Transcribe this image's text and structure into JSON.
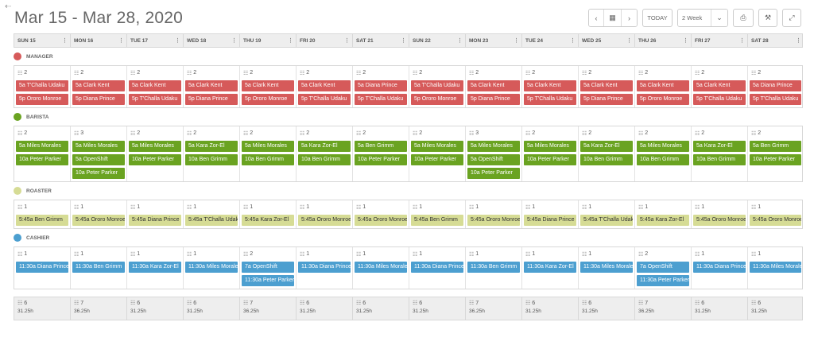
{
  "title": "Mar 15 - Mar 28, 2020",
  "back_glyph": "⇠",
  "toolbar": {
    "prev": "‹",
    "calendar": "▦",
    "next": "›",
    "today": "TODAY",
    "range": "2 Week",
    "range_caret": "⌄",
    "print": "⎙",
    "settings": "⚒",
    "expand": "⤢"
  },
  "days": [
    "SUN 15",
    "MON 16",
    "TUE 17",
    "WED 18",
    "THU 19",
    "FRI 20",
    "SAT 21",
    "SUN 22",
    "MON 23",
    "TUE 24",
    "WED 25",
    "THU 26",
    "FRI 27",
    "SAT 28"
  ],
  "header_menu": "⋮",
  "count_icon": "☷",
  "sections": [
    {
      "name": "MANAGER",
      "color": "#d65a5a",
      "dark_text": false,
      "max": 2,
      "counts": [
        "2",
        "2",
        "2",
        "2",
        "2",
        "2",
        "2",
        "2",
        "2",
        "2",
        "2",
        "2",
        "2",
        "2"
      ],
      "shifts": [
        [
          [
            "5a T'Challa Udaku",
            0
          ],
          [
            "5p Ororo Monroe",
            0
          ]
        ],
        [
          [
            "5a Clark Kent",
            0
          ],
          [
            "5p Diana Prince",
            0
          ]
        ],
        [
          [
            "5a Clark Kent",
            0
          ],
          [
            "5p T'Challa Udaku",
            0
          ]
        ],
        [
          [
            "5a Clark Kent",
            0
          ],
          [
            "5p Diana Prince",
            0
          ]
        ],
        [
          [
            "5a Clark Kent",
            0
          ],
          [
            "5p Ororo Monroe",
            0
          ]
        ],
        [
          [
            "5a Clark Kent",
            0
          ],
          [
            "5p T'Challa Udaku",
            0
          ]
        ],
        [
          [
            "5a Diana Prince",
            0
          ],
          [
            "5p T'Challa Udaku",
            0
          ]
        ],
        [
          [
            "5a T'Challa Udaku",
            1
          ],
          [
            "5p Ororo Monroe",
            1
          ]
        ],
        [
          [
            "5a Clark Kent",
            1
          ],
          [
            "5p Diana Prince",
            1
          ]
        ],
        [
          [
            "5a Clark Kent",
            1
          ],
          [
            "5p T'Challa Udaku",
            1
          ]
        ],
        [
          [
            "5a Clark Kent",
            1
          ],
          [
            "5p Diana Prince",
            1
          ]
        ],
        [
          [
            "5a Clark Kent",
            1
          ],
          [
            "5p Ororo Monroe",
            1
          ]
        ],
        [
          [
            "5a Clark Kent",
            1
          ],
          [
            "5p T'Challa Udaku",
            1
          ]
        ],
        [
          [
            "5a Diana Prince",
            1
          ],
          [
            "5p T'Challa Udaku",
            1
          ]
        ]
      ]
    },
    {
      "name": "BARISTA",
      "color": "#6aa321",
      "dark_text": false,
      "max": 3,
      "counts": [
        "2",
        "3",
        "2",
        "2",
        "2",
        "2",
        "2",
        "2",
        "3",
        "2",
        "2",
        "2",
        "2",
        "2"
      ],
      "shifts": [
        [
          [
            "5a Miles Morales",
            0
          ],
          [
            "10a Peter Parker",
            0
          ]
        ],
        [
          [
            "5a Miles Morales",
            0
          ],
          [
            "5a OpenShift",
            1
          ],
          [
            "10a Peter Parker",
            0
          ]
        ],
        [
          [
            "5a Miles Morales",
            0
          ],
          [
            "10a Peter Parker",
            0
          ]
        ],
        [
          [
            "5a Kara Zor-El",
            0
          ],
          [
            "10a Ben Grimm",
            0
          ]
        ],
        [
          [
            "5a Miles Morales",
            0
          ],
          [
            "10a Ben Grimm",
            0
          ]
        ],
        [
          [
            "5a Kara Zor-El",
            0
          ],
          [
            "10a Ben Grimm",
            0
          ]
        ],
        [
          [
            "5a Ben Grimm",
            0
          ],
          [
            "10a Peter Parker",
            0
          ]
        ],
        [
          [
            "5a Miles Morales",
            1
          ],
          [
            "10a Peter Parker",
            1
          ]
        ],
        [
          [
            "5a Miles Morales",
            1
          ],
          [
            "5a OpenShift",
            1
          ],
          [
            "10a Peter Parker",
            1
          ]
        ],
        [
          [
            "5a Miles Morales",
            1
          ],
          [
            "10a Peter Parker",
            1
          ]
        ],
        [
          [
            "5a Kara Zor-El",
            1
          ],
          [
            "10a Ben Grimm",
            1
          ]
        ],
        [
          [
            "5a Miles Morales",
            1
          ],
          [
            "10a Ben Grimm",
            1
          ]
        ],
        [
          [
            "5a Kara Zor-El",
            1
          ],
          [
            "10a Ben Grimm",
            1
          ]
        ],
        [
          [
            "5a Ben Grimm",
            1
          ],
          [
            "10a Peter Parker",
            1
          ]
        ]
      ]
    },
    {
      "name": "ROASTER",
      "color": "#d6dc95",
      "dark_text": true,
      "max": 1,
      "counts": [
        "1",
        "1",
        "1",
        "1",
        "1",
        "1",
        "1",
        "1",
        "1",
        "1",
        "1",
        "1",
        "1",
        "1"
      ],
      "shifts": [
        [
          [
            "5:45a Ben Grimm",
            0
          ]
        ],
        [
          [
            "5:45a Ororo Monroe",
            0
          ]
        ],
        [
          [
            "5:45a Diana Prince",
            0
          ]
        ],
        [
          [
            "5:45a T'Challa Udaku",
            0
          ]
        ],
        [
          [
            "5:45a Kara Zor-El",
            0
          ]
        ],
        [
          [
            "5:45a Ororo Monroe",
            0
          ]
        ],
        [
          [
            "5:45a Ororo Monroe",
            0
          ]
        ],
        [
          [
            "5:45a Ben Grimm",
            0
          ]
        ],
        [
          [
            "5:45a Ororo Monroe",
            0
          ]
        ],
        [
          [
            "5:45a Diana Prince",
            0
          ]
        ],
        [
          [
            "5:45a T'Challa Udaku",
            0
          ]
        ],
        [
          [
            "5:45a Kara Zor-El",
            0
          ]
        ],
        [
          [
            "5:45a Ororo Monroe",
            0
          ]
        ],
        [
          [
            "5:45a Ororo Monroe",
            0
          ]
        ]
      ]
    },
    {
      "name": "CASHIER",
      "color": "#4c9fd0",
      "dark_text": false,
      "max": 2,
      "counts": [
        "1",
        "1",
        "1",
        "1",
        "2",
        "1",
        "1",
        "1",
        "1",
        "1",
        "1",
        "2",
        "1",
        "1"
      ],
      "shifts": [
        [
          [
            "11:30a Diana Prince",
            0
          ]
        ],
        [
          [
            "11:30a Ben Grimm",
            0
          ]
        ],
        [
          [
            "11:30a Kara Zor-El",
            0
          ]
        ],
        [
          [
            "11:30a Miles Morales",
            0
          ]
        ],
        [
          [
            "7a OpenShift",
            1
          ],
          [
            "11:30a Peter Parker",
            0
          ]
        ],
        [
          [
            "11:30a Diana Prince",
            0
          ]
        ],
        [
          [
            "11:30a Miles Morales",
            0
          ]
        ],
        [
          [
            "11:30a Diana Prince",
            1
          ]
        ],
        [
          [
            "11:30a Ben Grimm",
            1
          ]
        ],
        [
          [
            "11:30a Kara Zor-El",
            1
          ]
        ],
        [
          [
            "11:30a Miles Morales",
            1
          ]
        ],
        [
          [
            "7a OpenShift",
            1
          ],
          [
            "11:30a Peter Parker",
            1
          ]
        ],
        [
          [
            "11:30a Diana Prince",
            1
          ]
        ],
        [
          [
            "11:30a Miles Morales",
            1
          ]
        ]
      ]
    }
  ],
  "totals": [
    {
      "count": "6",
      "hours": "31.25h"
    },
    {
      "count": "7",
      "hours": "36.25h"
    },
    {
      "count": "6",
      "hours": "31.25h"
    },
    {
      "count": "6",
      "hours": "31.25h"
    },
    {
      "count": "7",
      "hours": "36.25h"
    },
    {
      "count": "6",
      "hours": "31.25h"
    },
    {
      "count": "6",
      "hours": "31.25h"
    },
    {
      "count": "6",
      "hours": "31.25h"
    },
    {
      "count": "7",
      "hours": "36.25h"
    },
    {
      "count": "6",
      "hours": "31.25h"
    },
    {
      "count": "6",
      "hours": "31.25h"
    },
    {
      "count": "7",
      "hours": "36.25h"
    },
    {
      "count": "6",
      "hours": "31.25h"
    },
    {
      "count": "6",
      "hours": "31.25h"
    }
  ]
}
